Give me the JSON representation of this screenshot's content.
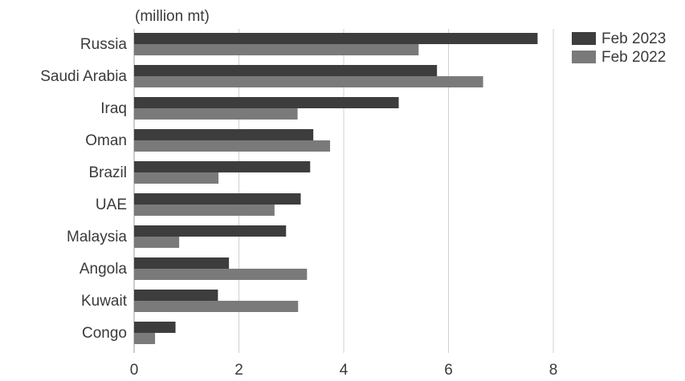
{
  "chart_data": {
    "type": "bar",
    "orientation": "horizontal",
    "unit_label": "(million mt)",
    "categories": [
      "Russia",
      "Saudi Arabia",
      "Iraq",
      "Oman",
      "Brazil",
      "UAE",
      "Malaysia",
      "Angola",
      "Kuwait",
      "Congo"
    ],
    "series": [
      {
        "name": "Feb 2023",
        "color": "#3d3d3d",
        "values": [
          7.7,
          5.78,
          5.05,
          3.42,
          3.36,
          3.18,
          2.9,
          1.81,
          1.6,
          0.79
        ]
      },
      {
        "name": "Feb 2022",
        "color": "#7a7a7a",
        "values": [
          5.43,
          6.66,
          3.12,
          3.74,
          1.61,
          2.68,
          0.86,
          3.3,
          3.13,
          0.4
        ]
      }
    ],
    "xlim": [
      0,
      8
    ],
    "xticks": [
      0,
      2,
      4,
      6,
      8
    ],
    "grid": "vertical",
    "legend": "top-right"
  }
}
